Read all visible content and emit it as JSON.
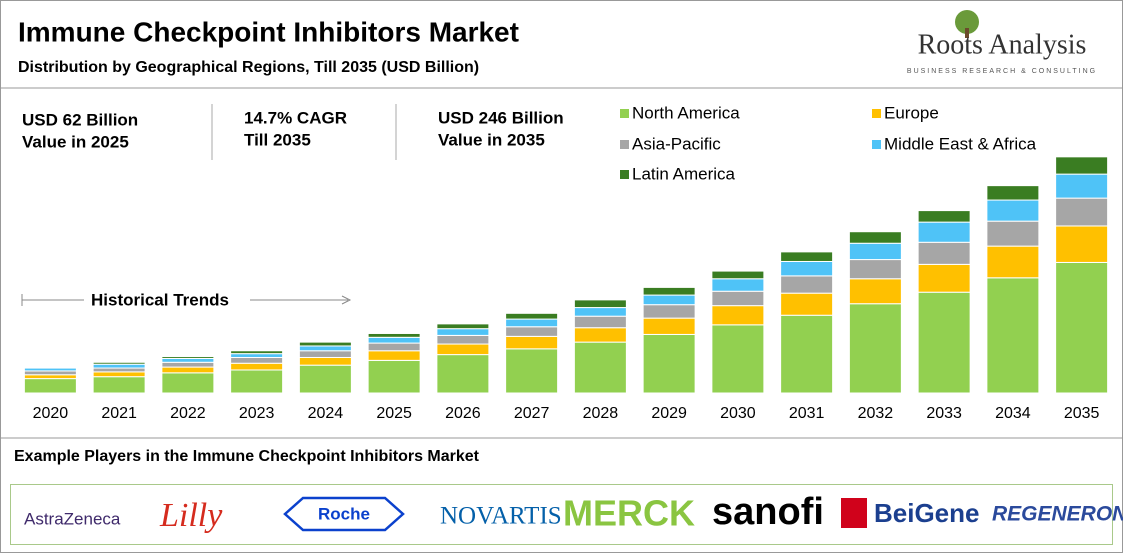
{
  "brand": {
    "name": "Roots Analysis",
    "tagline": "BUSINESS RESEARCH & CONSULTING"
  },
  "stats": [
    {
      "line1": "USD 62 Billion",
      "line2": "Value in 2025"
    },
    {
      "line1": "14.7% CAGR",
      "line2": "Till 2035"
    },
    {
      "line1": "USD 246 Billion",
      "line2": "Value in 2035"
    }
  ],
  "chart_data": {
    "type": "bar",
    "stacked": true,
    "title": "Immune Checkpoint Inhibitors Market",
    "subtitle": "Distribution by Geographical Regions, Till 2035 (USD Billion)",
    "annotation": "Historical Trends",
    "categories": [
      "2020",
      "2021",
      "2022",
      "2023",
      "2024",
      "2025",
      "2026",
      "2027",
      "2028",
      "2029",
      "2030",
      "2031",
      "2032",
      "2033",
      "2034",
      "2035"
    ],
    "series": [
      {
        "name": "North America",
        "color": "#92d050",
        "values": [
          15,
          17,
          21,
          24,
          29,
          34,
          40,
          46,
          53,
          61,
          71,
          81,
          93,
          105,
          120,
          136
        ]
      },
      {
        "name": "Europe",
        "color": "#ffc000",
        "values": [
          4,
          5,
          6,
          7,
          8,
          10,
          11,
          13,
          15,
          17,
          20,
          23,
          26,
          29,
          33,
          38
        ]
      },
      {
        "name": "Asia-Pacific",
        "color": "#a6a6a6",
        "values": [
          4,
          4,
          5,
          6,
          7,
          8,
          9,
          10,
          12,
          14,
          15,
          18,
          20,
          23,
          26,
          29
        ]
      },
      {
        "name": "Middle East & Africa",
        "color": "#4fc3f7",
        "values": [
          3,
          4,
          4,
          4,
          5,
          6,
          7,
          8,
          9,
          10,
          13,
          15,
          17,
          21,
          22,
          25
        ]
      },
      {
        "name": "Latin America",
        "color": "#3a7d22",
        "values": [
          1,
          2,
          2,
          3,
          4,
          4,
          5,
          6,
          8,
          8,
          8,
          10,
          12,
          12,
          15,
          18
        ]
      }
    ]
  },
  "players": {
    "title": "Example Players in the Immune Checkpoint Inhibitors Market",
    "companies": [
      "AstraZeneca",
      "Lilly",
      "Roche",
      "NOVARTIS",
      "MERCK",
      "sanofi",
      "BeiGene",
      "REGENERON"
    ]
  }
}
